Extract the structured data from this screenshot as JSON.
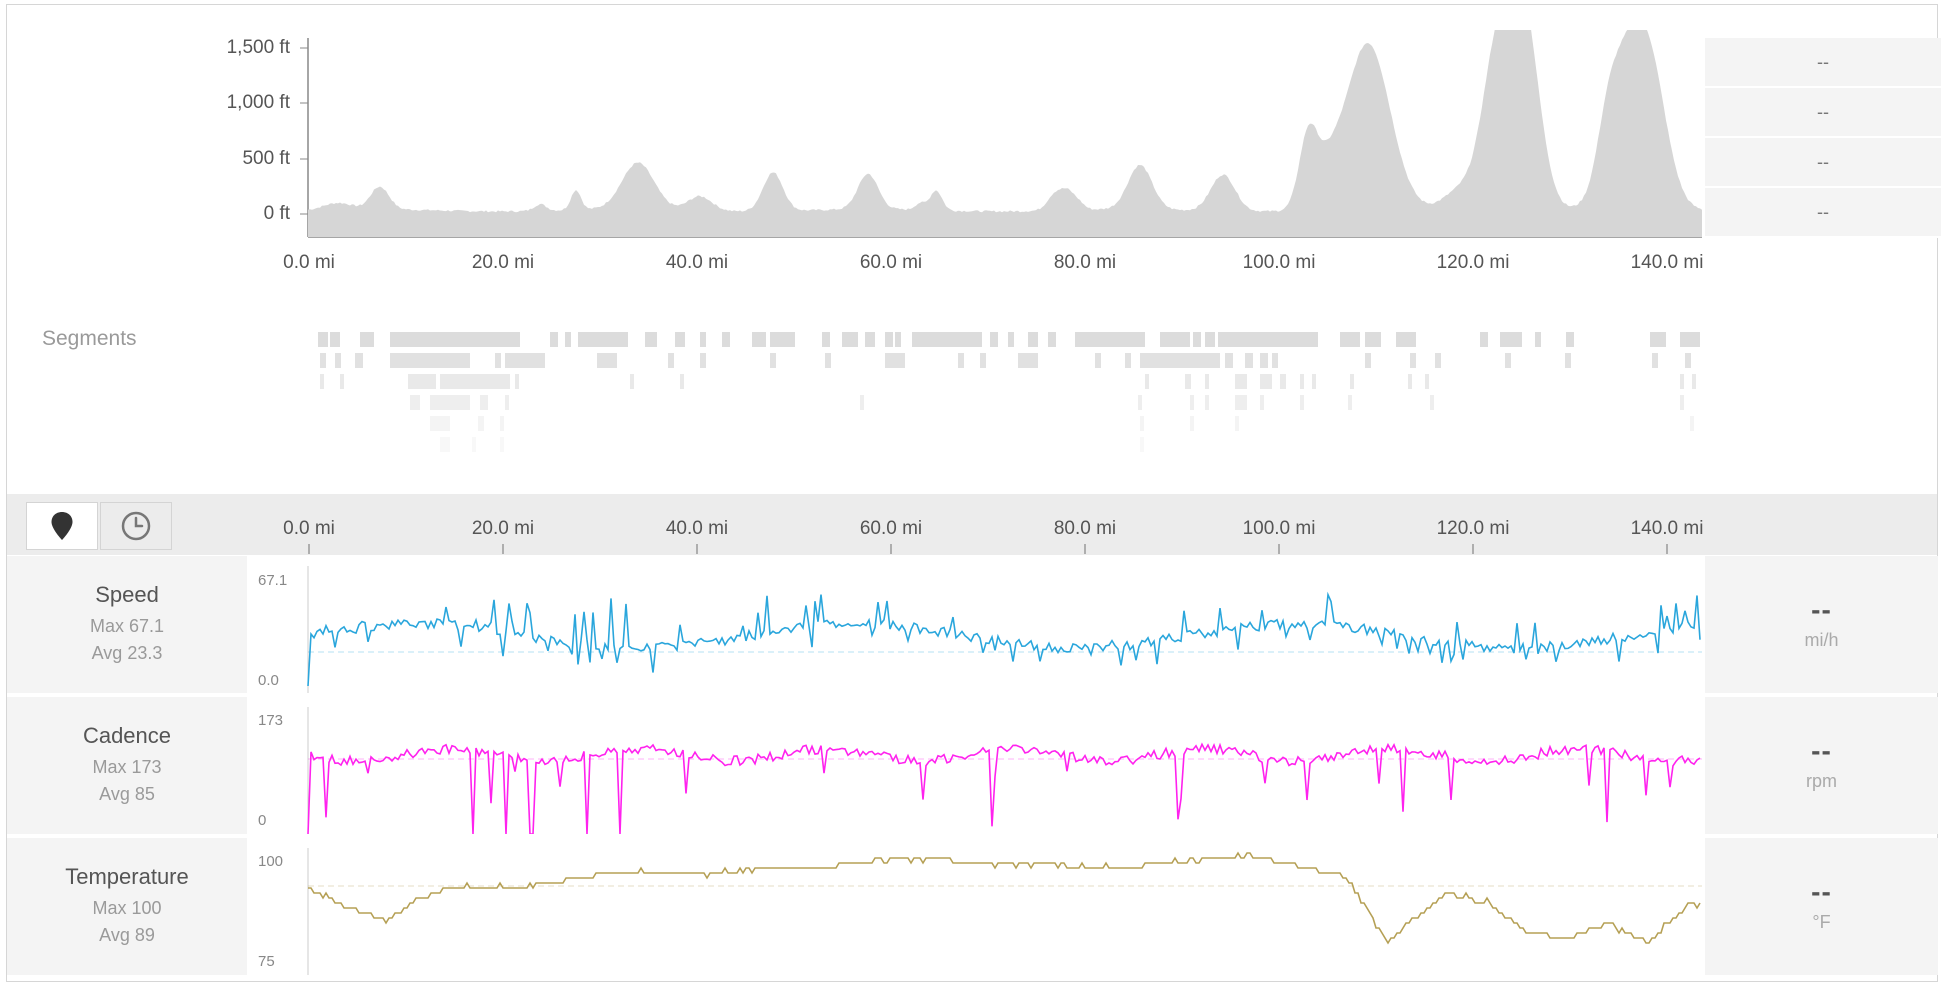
{
  "elevation": {
    "y_ticks": [
      "1,500 ft",
      "1,000 ft",
      "500 ft",
      "0 ft"
    ],
    "x_ticks": [
      "0.0 mi",
      "20.0 mi",
      "40.0 mi",
      "60.0 mi",
      "80.0 mi",
      "100.0 mi",
      "120.0 mi",
      "140.0 mi"
    ],
    "legend_values": [
      "--",
      "--",
      "--",
      "--"
    ],
    "fill_color": "#d6d6d6"
  },
  "segments": {
    "label": "Segments"
  },
  "controls": {
    "distance_icon": "map-pin-icon",
    "time_icon": "clock-icon",
    "x_ticks": [
      "0.0 mi",
      "20.0 mi",
      "40.0 mi",
      "60.0 mi",
      "80.0 mi",
      "100.0 mi",
      "120.0 mi",
      "140.0 mi"
    ]
  },
  "streams": [
    {
      "name": "Speed",
      "max_label": "Max 67.1",
      "avg_label": "Avg 23.3",
      "y_max": "67.1",
      "y_min": "0.0",
      "value": "--",
      "unit": "mi/h",
      "color": "#2aa6dc"
    },
    {
      "name": "Cadence",
      "max_label": "Max 173",
      "avg_label": "Avg 85",
      "y_max": "173",
      "y_min": "0",
      "value": "--",
      "unit": "rpm",
      "color": "#ff22ee"
    },
    {
      "name": "Temperature",
      "max_label": "Max 100",
      "avg_label": "Avg 89",
      "y_max": "100",
      "y_min": "75",
      "value": "--",
      "unit": "°F",
      "color": "#b5a055"
    }
  ]
}
